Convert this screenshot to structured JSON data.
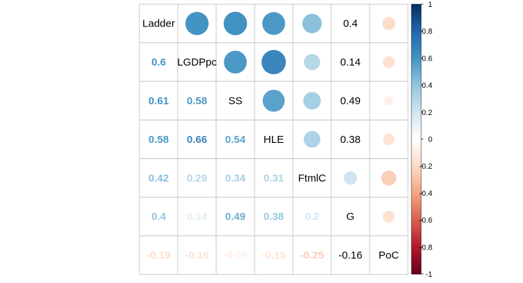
{
  "chart_data": {
    "type": "heatmap",
    "variables": [
      "Ladder",
      "LGDPpc",
      "SS",
      "HLE",
      "FtmlC",
      "G",
      "PoC"
    ],
    "matrix": [
      [
        1,
        0.6,
        0.61,
        0.58,
        0.42,
        0.4,
        -0.19
      ],
      [
        0.6,
        1,
        0.58,
        0.66,
        0.29,
        0.14,
        -0.16
      ],
      [
        0.61,
        0.58,
        1,
        0.54,
        0.34,
        0.49,
        -0.09
      ],
      [
        0.58,
        0.66,
        0.54,
        1,
        0.31,
        0.38,
        -0.15
      ],
      [
        0.42,
        0.29,
        0.34,
        0.31,
        1,
        0.2,
        -0.25
      ],
      [
        0.4,
        0.14,
        0.49,
        0.38,
        0.2,
        1,
        -0.16
      ],
      [
        -0.19,
        -0.16,
        -0.09,
        -0.15,
        -0.25,
        -0.16,
        1
      ]
    ],
    "upper_labels": [
      [
        "",
        "",
        "",
        "",
        "",
        "0.4",
        ""
      ],
      [
        "",
        "",
        "",
        "",
        "",
        "0.14",
        ""
      ],
      [
        "",
        "",
        "",
        "",
        "",
        "0.49",
        ""
      ],
      [
        "",
        "",
        "",
        "",
        "",
        "0.38",
        ""
      ],
      [
        "",
        "",
        "",
        "",
        "",
        "",
        ""
      ],
      [
        "",
        "",
        "",
        "",
        "",
        "",
        ""
      ],
      [
        "",
        "",
        "",
        "",
        "",
        "",
        ""
      ]
    ],
    "lower_labels": [
      [
        "",
        "",
        "",
        "",
        "",
        "",
        ""
      ],
      [
        "0.6",
        "",
        "",
        "",
        "",
        "",
        ""
      ],
      [
        "0.61",
        "0.58",
        "",
        "",
        "",
        "",
        ""
      ],
      [
        "0.58",
        "0.66",
        "0.54",
        "",
        "",
        "",
        ""
      ],
      [
        "0.42",
        "0.29",
        "0.34",
        "0.31",
        "",
        "",
        ""
      ],
      [
        "0.4",
        "0.14",
        "0.49",
        "0.38",
        "0.2",
        "",
        ""
      ],
      [
        "-0.19",
        "-0.16",
        "-0.09",
        "-0.15",
        "-0.25",
        "-0.16",
        ""
      ]
    ],
    "upper": "circle",
    "lower": "number",
    "color_scale": {
      "range": [
        -1,
        1
      ],
      "ticks": [
        "1",
        "0.8",
        "0.6",
        "0.4",
        "0.2",
        "0",
        "-0.2",
        "-0.4",
        "-0.6",
        "-0.8",
        "-1"
      ],
      "colors": [
        "#67001F",
        "#B2182B",
        "#D6604D",
        "#F4A582",
        "#FDDBC7",
        "#FFFFFF",
        "#D1E5F0",
        "#92C5DE",
        "#4393C3",
        "#2166AC",
        "#053061"
      ]
    },
    "grid": true,
    "legend": "right"
  }
}
